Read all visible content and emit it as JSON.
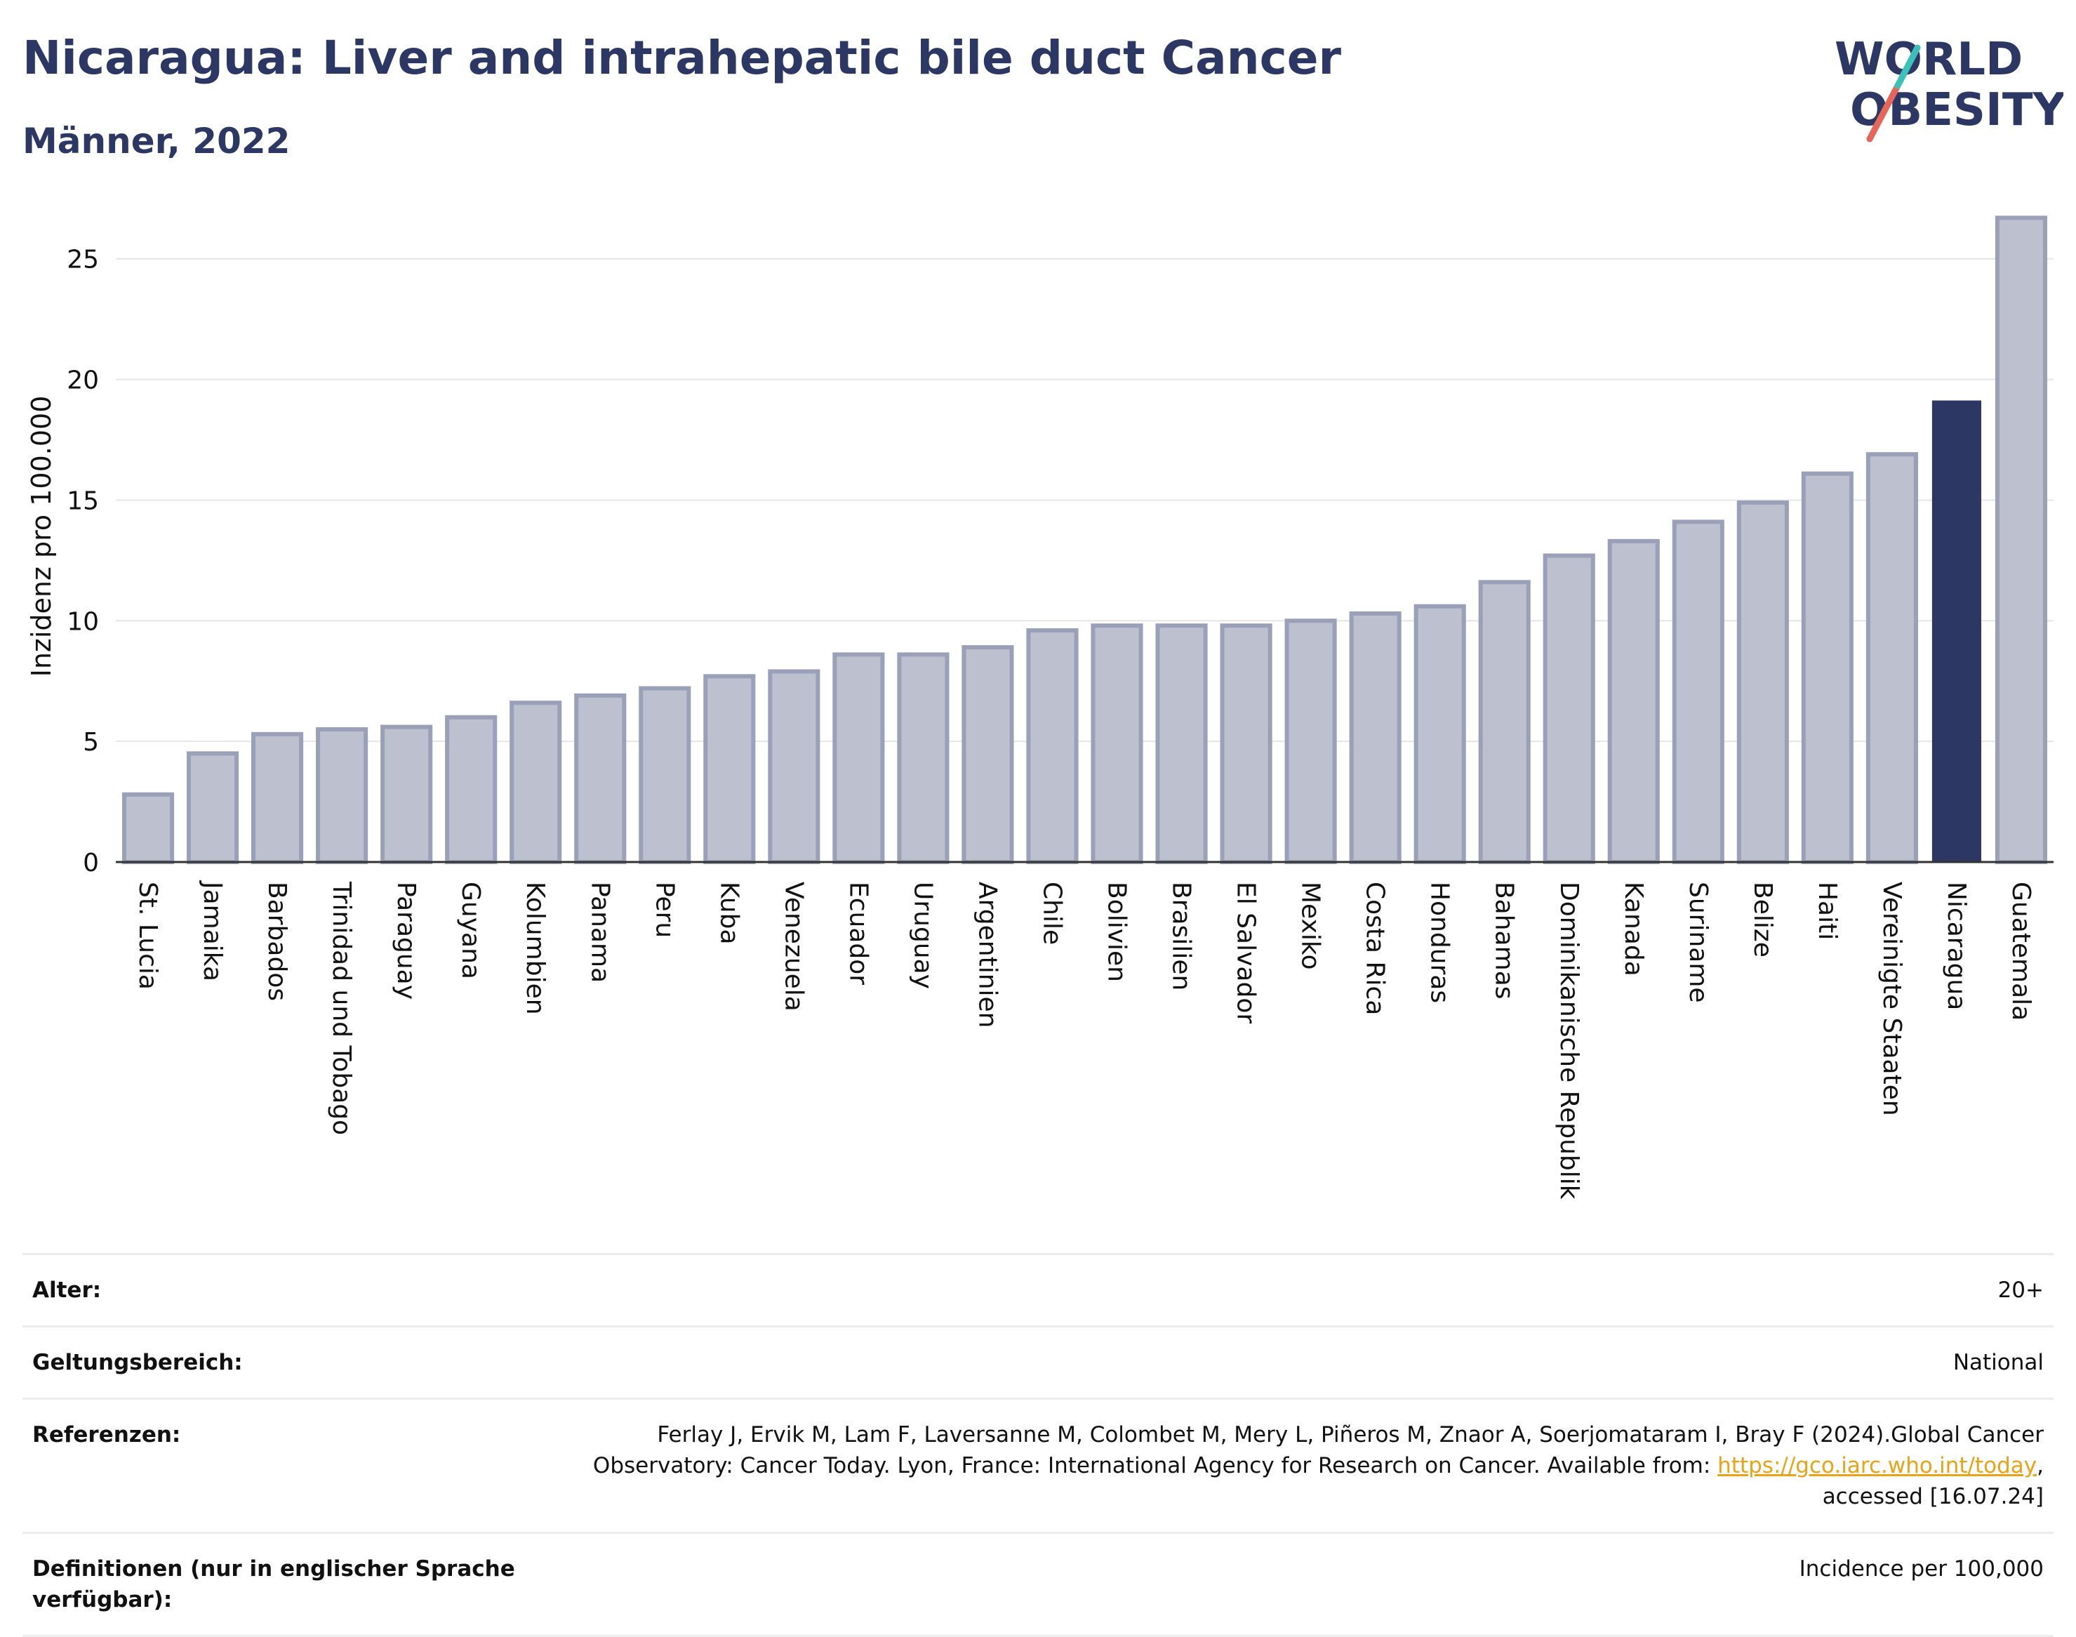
{
  "header": {
    "title": "Nicaragua: Liver and intrahepatic bile duct Cancer",
    "subtitle": "Männer, 2022"
  },
  "logo": {
    "line1": "WORLD",
    "line2": "OBESITY",
    "colors": {
      "text": "#2d3763",
      "slash_red": "#e5675a",
      "slash_teal": "#3cc0b8"
    }
  },
  "colors": {
    "bar": "#bcc0cf",
    "bar_border": "#9aa0b7",
    "highlight": "#2d3763",
    "grid": "#e6e6e6",
    "axis": "#333333"
  },
  "chart_data": {
    "type": "bar",
    "ylabel": "Inzidenz pro 100.000",
    "xlabel": "",
    "ylim": [
      0,
      27
    ],
    "yticks": [
      0,
      5,
      10,
      15,
      20,
      25
    ],
    "grid": true,
    "highlight": "Nicaragua",
    "categories": [
      "St. Lucia",
      "Jamaika",
      "Barbados",
      "Trinidad und Tobago",
      "Paraguay",
      "Guyana",
      "Kolumbien",
      "Panama",
      "Peru",
      "Kuba",
      "Venezuela",
      "Ecuador",
      "Uruguay",
      "Argentinien",
      "Chile",
      "Bolivien",
      "Brasilien",
      "El Salvador",
      "Mexiko",
      "Costa Rica",
      "Honduras",
      "Bahamas",
      "Dominikanische Republik",
      "Kanada",
      "Suriname",
      "Belize",
      "Haiti",
      "Vereinigte Staaten",
      "Nicaragua",
      "Guatemala"
    ],
    "values": [
      2.8,
      4.5,
      5.3,
      5.5,
      5.6,
      6.0,
      6.6,
      6.9,
      7.2,
      7.7,
      7.9,
      8.6,
      8.6,
      8.9,
      9.6,
      9.8,
      9.8,
      9.8,
      10.0,
      10.3,
      10.6,
      11.6,
      12.7,
      13.3,
      14.1,
      14.9,
      16.1,
      16.9,
      19.1,
      26.7
    ]
  },
  "meta": {
    "age_label": "Alter:",
    "age_value": "20+",
    "scope_label": "Geltungsbereich:",
    "scope_value": "National",
    "ref_label": "Referenzen:",
    "ref_text1": "Ferlay J, Ervik M, Lam F, Laversanne M, Colombet M, Mery L, Piñeros M, Znaor A, Soerjomataram I, Bray F (2024).Global Cancer",
    "ref_text2": "Observatory: Cancer Today. Lyon, France: International Agency for Research on Cancer. Available from: ",
    "ref_link": "https://gco.iarc.who.int/today",
    "ref_text3": ",",
    "ref_text4": "accessed [16.07.24]",
    "def_label": "Definitionen (nur in englischer Sprache verfügbar):",
    "def_value": "Incidence per 100,000"
  }
}
